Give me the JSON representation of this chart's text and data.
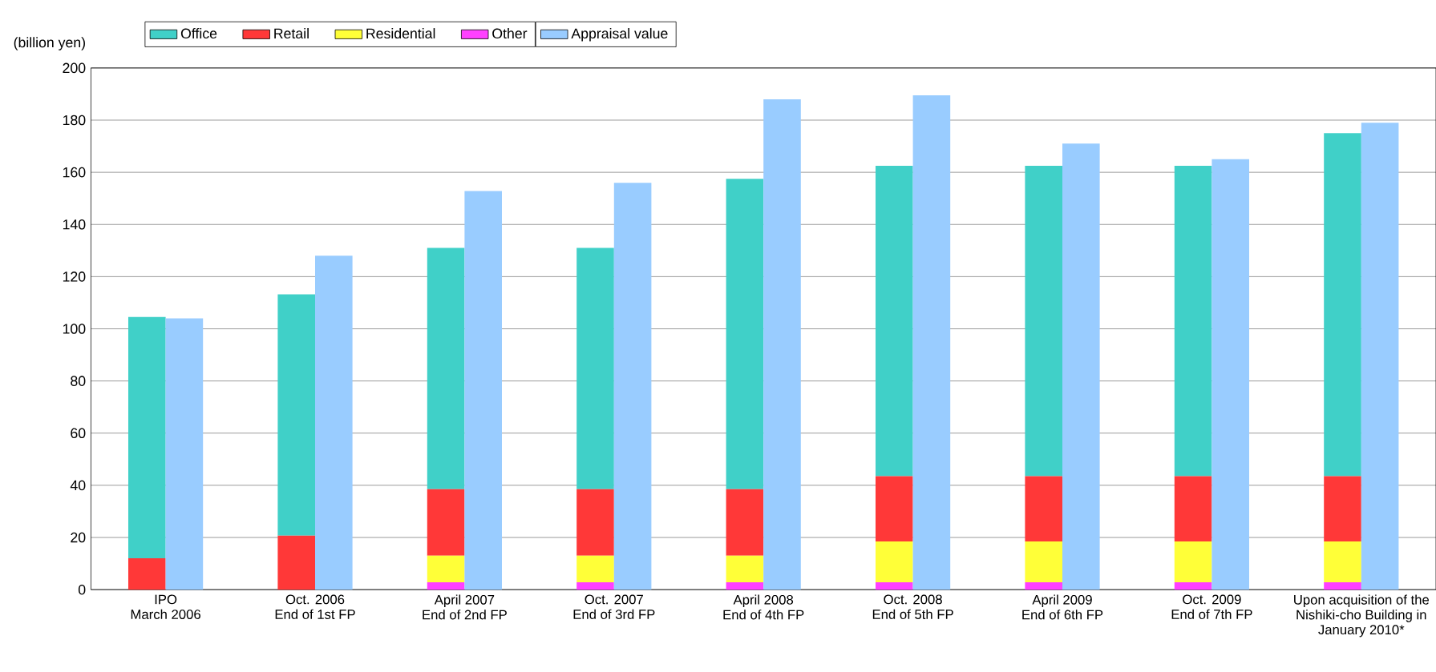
{
  "chart_data": [
    {
      "type": "bar",
      "stacked": true,
      "ylabel": "(billion yen)",
      "categories": [
        "IPO\nMarch 2006",
        "Oct. 2006\nEnd of 1st FP",
        "April 2007\nEnd of 2nd FP",
        "Oct. 2007\nEnd of 3rd FP",
        "April 2008\nEnd of 4th FP",
        "Oct. 2008\nEnd of 5th FP",
        "April 2009\nEnd of 6th FP",
        "Oct. 2009\nEnd of 7th FP",
        "Upon acquisition of the\nNishiki-cho Building in\nJanuary 2010*"
      ],
      "series": [
        {
          "name": "Other",
          "color": "#ff40ff",
          "values": [
            null,
            null,
            2.8,
            2.8,
            2.8,
            2.8,
            2.8,
            2.8,
            2.8
          ]
        },
        {
          "name": "Residential",
          "color": "#ffff38",
          "values": [
            null,
            null,
            10.2,
            10.2,
            10.2,
            15.7,
            15.7,
            15.7,
            15.7
          ]
        },
        {
          "name": "Retail",
          "color": "#ff3838",
          "values": [
            12,
            20.7,
            25.5,
            25.5,
            25.5,
            25,
            25,
            25,
            25
          ]
        },
        {
          "name": "Office",
          "color": "#40d0c8",
          "values": [
            92.5,
            92.5,
            92.5,
            92.5,
            119,
            119,
            119,
            119,
            131.5
          ]
        }
      ],
      "ylim": [
        0,
        200
      ],
      "yticks": [
        0,
        20,
        40,
        60,
        80,
        100,
        120,
        140,
        160,
        180,
        200
      ],
      "grid": "y",
      "legend": "top"
    },
    {
      "type": "bar",
      "categories": [
        null,
        null,
        null,
        null,
        null,
        null,
        null,
        null,
        null
      ],
      "series": [
        {
          "name": "Appraisal value",
          "color": "#99ccff",
          "values": [
            104,
            128,
            152.8,
            156,
            188,
            189.5,
            171,
            165,
            179
          ]
        }
      ],
      "ylim": [
        0,
        200
      ],
      "yticks": [
        0,
        20,
        40,
        60,
        80,
        100,
        120,
        140,
        160,
        180,
        200
      ],
      "tick_labels": false,
      "legend": "top"
    }
  ]
}
